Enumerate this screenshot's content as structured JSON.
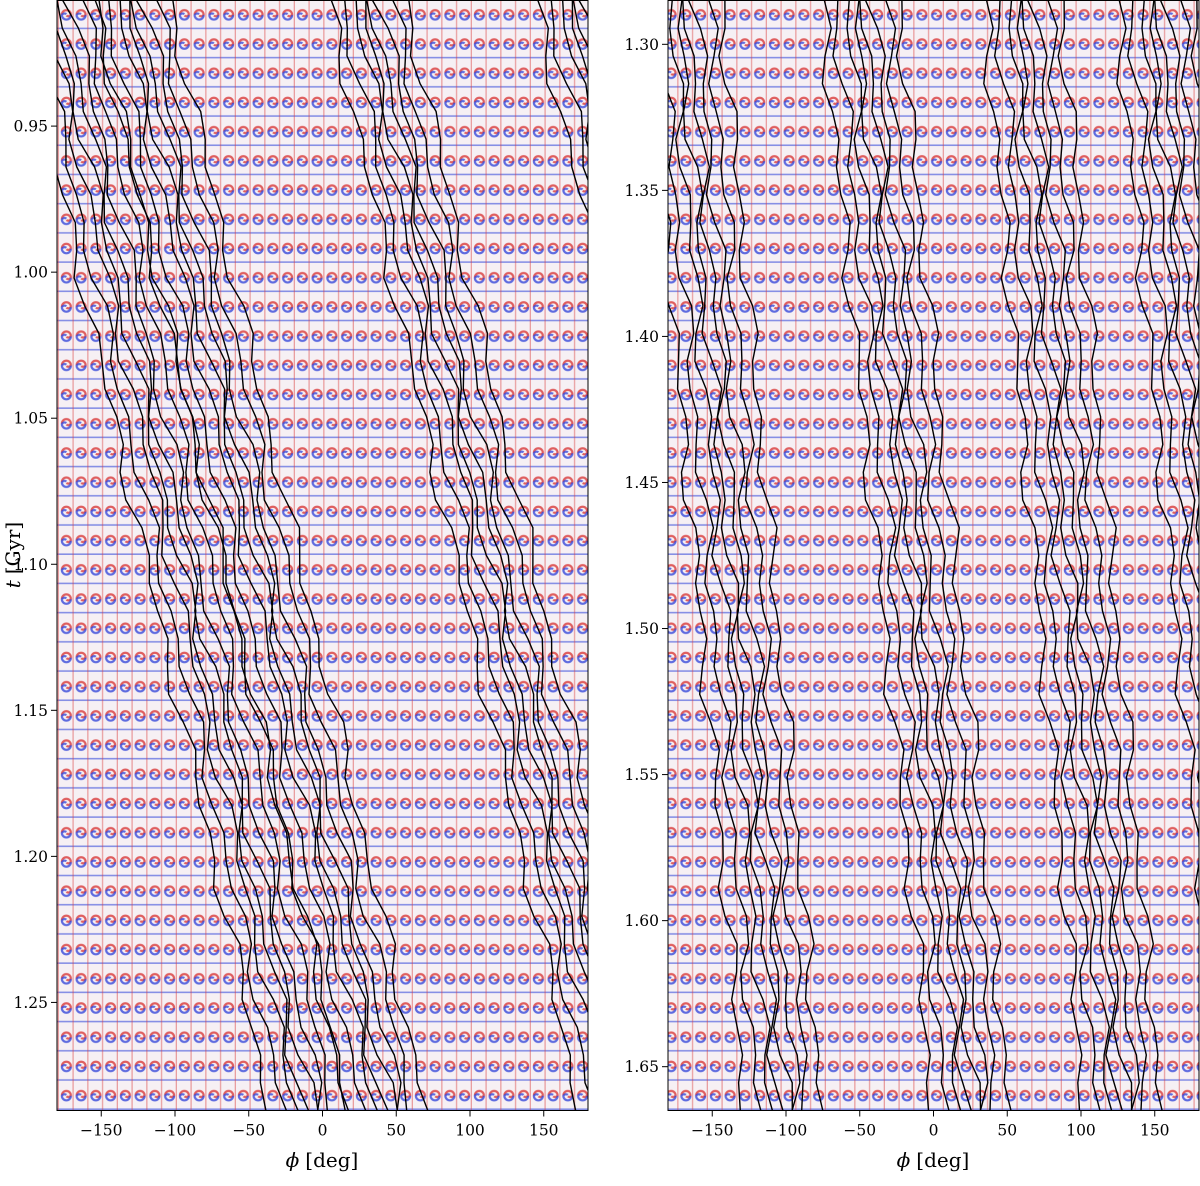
{
  "figure": {
    "caption": ""
  },
  "colors": {
    "positive": "#d93a3a",
    "negative": "#2a3fd8",
    "neutral": "#f6f0f4",
    "contour": "#000000"
  },
  "chart_data": [
    {
      "type": "heatmap",
      "title": "",
      "xlabel_symbol": "ϕ",
      "xlabel_unit": "[deg]",
      "ylabel_symbol": "t",
      "ylabel_unit": "[Gyr]",
      "xlim": [
        -180,
        180
      ],
      "ylim": [
        0.907,
        1.287
      ],
      "y_inverted": true,
      "xticks": [
        -150,
        -100,
        -50,
        0,
        50,
        100,
        150
      ],
      "xtick_labels": [
        "−150",
        "−100",
        "−50",
        "0",
        "50",
        "100",
        "150"
      ],
      "yticks": [
        0.95,
        1.0,
        1.05,
        1.1,
        1.15,
        1.2,
        1.25
      ],
      "ytick_labels": [
        "0.95",
        "1.00",
        "1.05",
        "1.10",
        "1.15",
        "1.20",
        "1.25"
      ],
      "grid": false,
      "tile_columns": 36,
      "tile_rows": 38,
      "contour_ridges": [
        {
          "x_at_top": -180,
          "slope_deg_per_gyr": 450
        },
        {
          "x_at_top": -130,
          "slope_deg_per_gyr": 460
        },
        {
          "x_at_top": 30,
          "slope_deg_per_gyr": 450
        },
        {
          "x_at_top": 170,
          "slope_deg_per_gyr": 460
        }
      ]
    },
    {
      "type": "heatmap",
      "title": "",
      "xlabel_symbol": "ϕ",
      "xlabel_unit": "[deg]",
      "ylabel_symbol": "",
      "ylabel_unit": "",
      "xlim": [
        -180,
        180
      ],
      "ylim": [
        1.285,
        1.665
      ],
      "y_inverted": true,
      "xticks": [
        -150,
        -100,
        -50,
        0,
        50,
        100,
        150
      ],
      "xtick_labels": [
        "−150",
        "−100",
        "−50",
        "0",
        "50",
        "100",
        "150"
      ],
      "yticks": [
        1.3,
        1.35,
        1.4,
        1.45,
        1.5,
        1.55,
        1.6,
        1.65
      ],
      "ytick_labels": [
        "1.30",
        "1.35",
        "1.40",
        "1.45",
        "1.50",
        "1.55",
        "1.60",
        "1.65"
      ],
      "grid": false,
      "tile_columns": 36,
      "tile_rows": 38,
      "contour_ridges": [
        {
          "x_at_top": -170,
          "slope_deg_per_gyr": 180
        },
        {
          "x_at_top": -50,
          "slope_deg_per_gyr": 200
        },
        {
          "x_at_top": 60,
          "slope_deg_per_gyr": 180
        },
        {
          "x_at_top": 150,
          "slope_deg_per_gyr": 190
        }
      ]
    }
  ]
}
